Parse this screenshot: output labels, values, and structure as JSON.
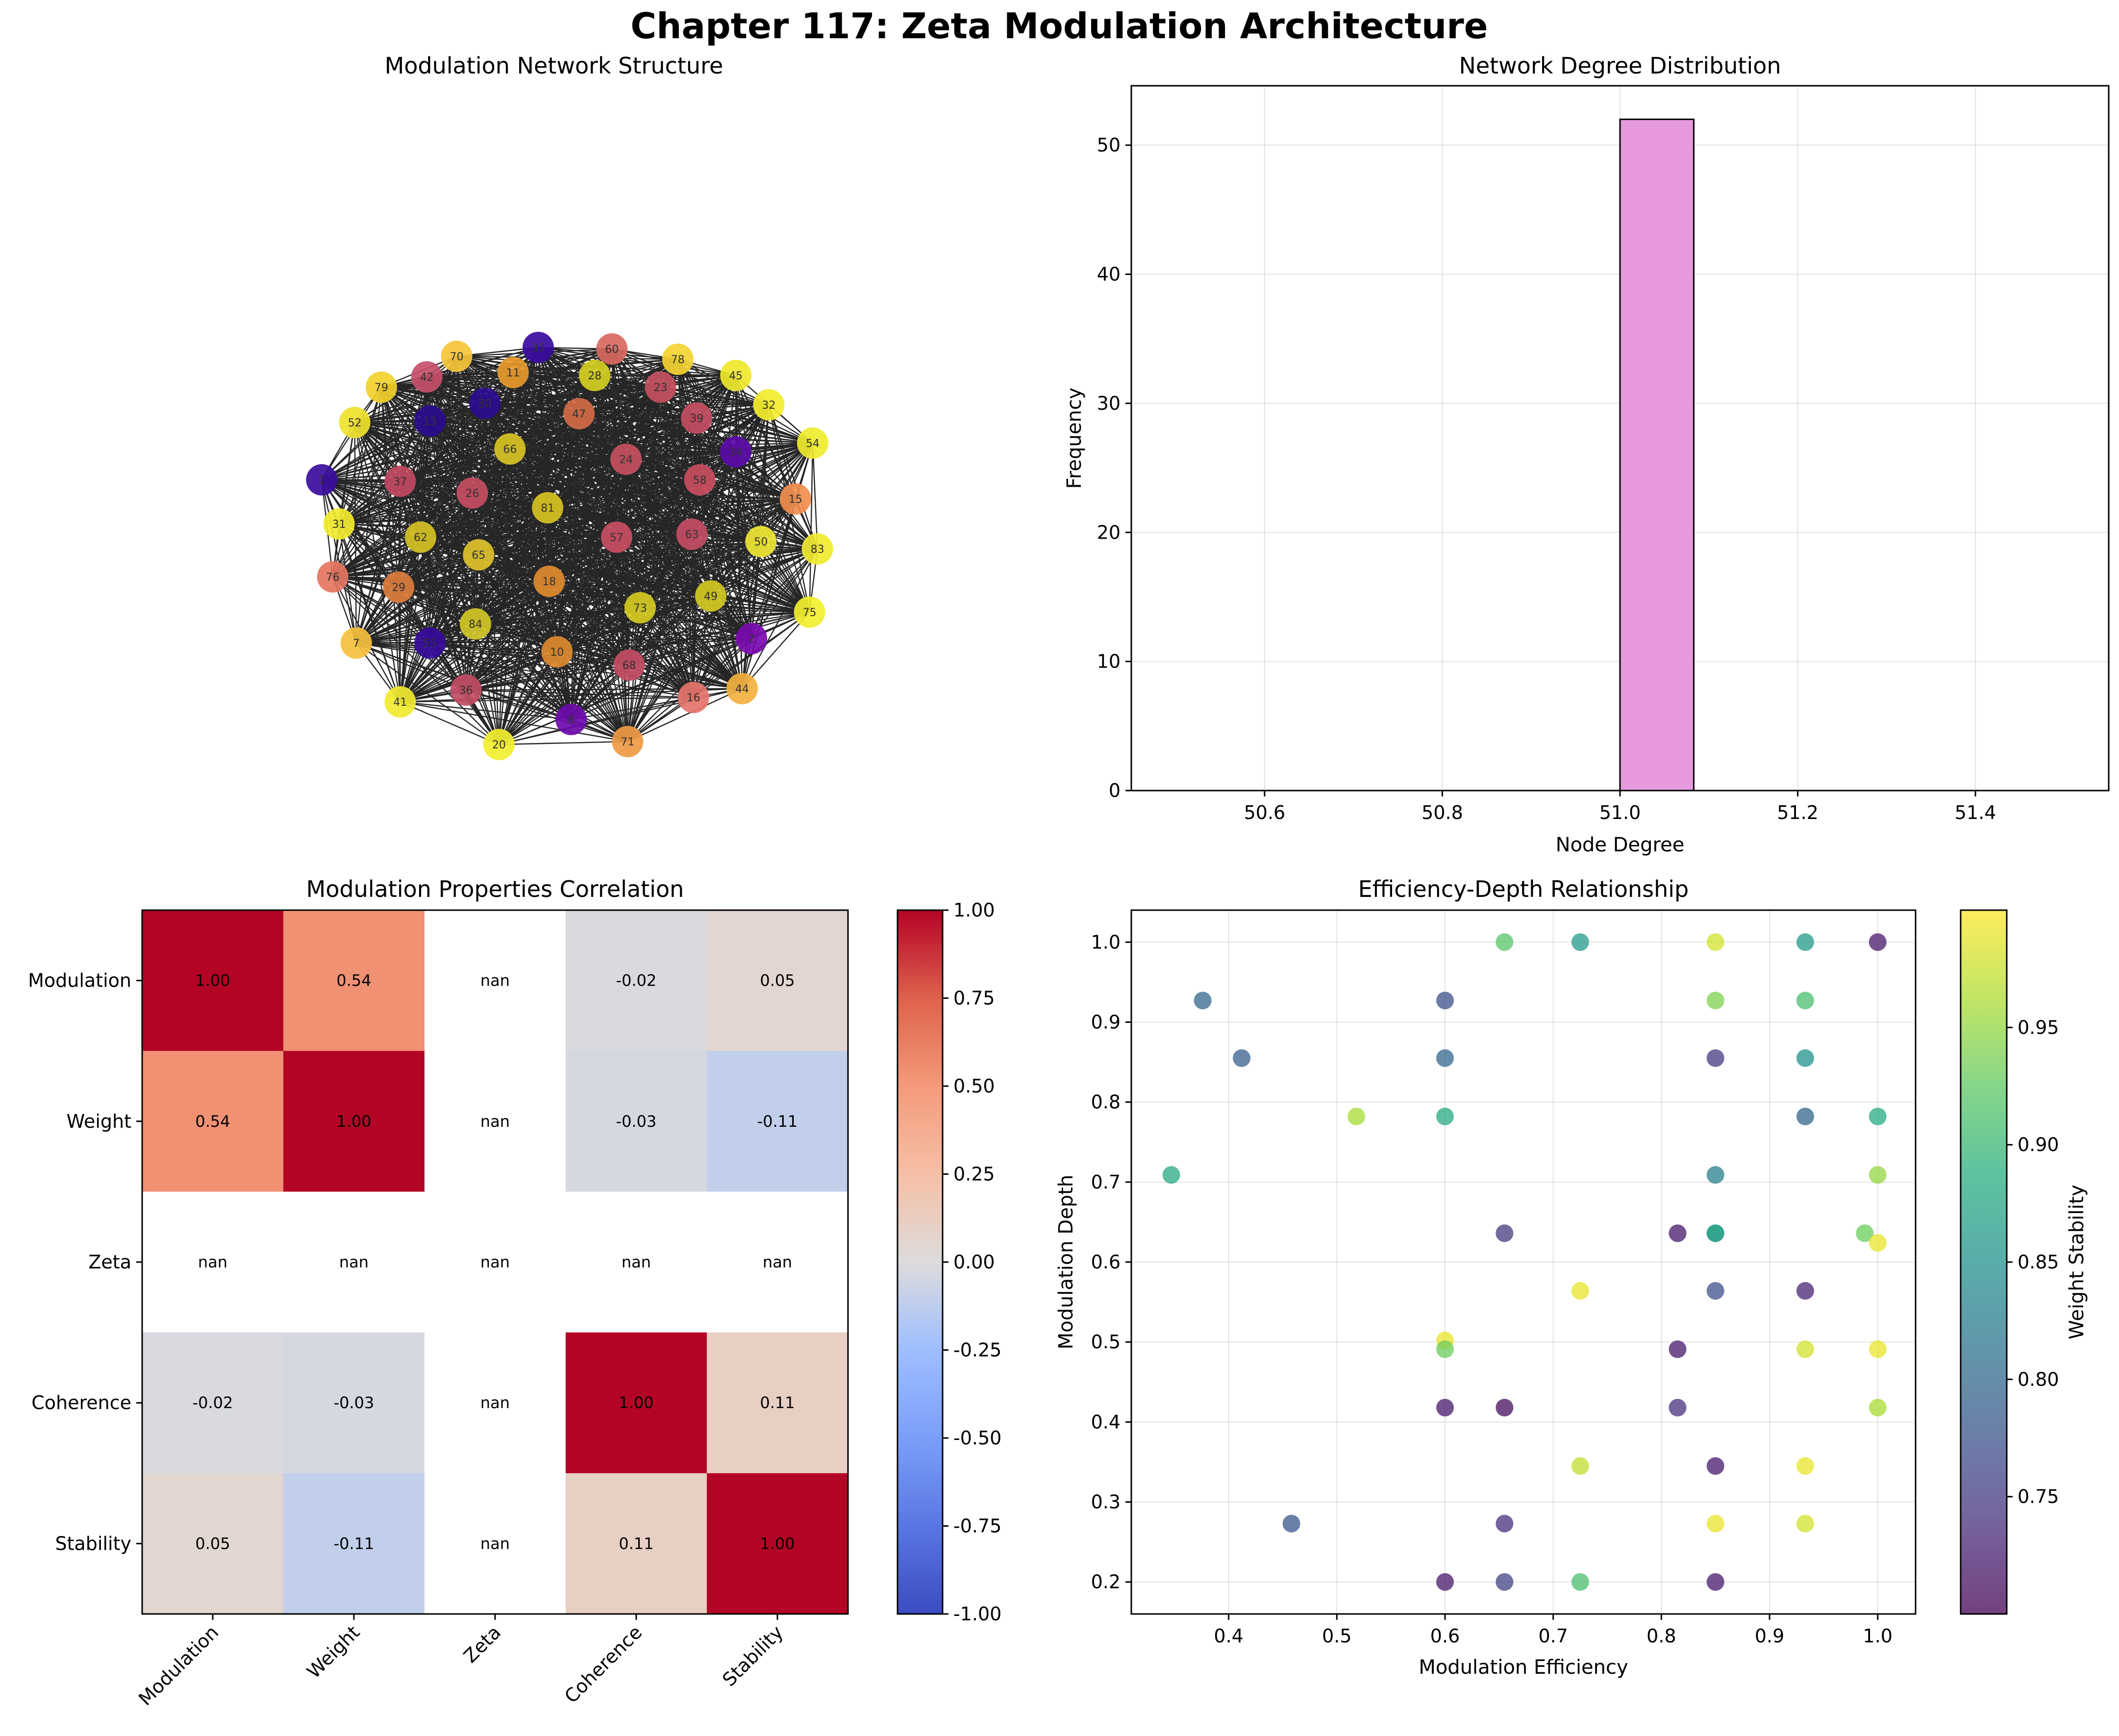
{
  "suptitle": "Chapter 117: Zeta Modulation Architecture",
  "chart_data": [
    {
      "type": "network",
      "title": "Modulation Network Structure",
      "nodes": [
        {
          "id": 70,
          "x": -0.62,
          "y": 0.86,
          "c": "#f7c63a"
        },
        {
          "id": 33,
          "x": -0.1,
          "y": 0.92,
          "c": "#3a0b9e"
        },
        {
          "id": 60,
          "x": 0.37,
          "y": 0.91,
          "c": "#d8685e"
        },
        {
          "id": 78,
          "x": 0.79,
          "y": 0.84,
          "c": "#f3d431"
        },
        {
          "id": 42,
          "x": -0.81,
          "y": 0.72,
          "c": "#c64f69"
        },
        {
          "id": 11,
          "x": -0.26,
          "y": 0.75,
          "c": "#e79a2a"
        },
        {
          "id": 28,
          "x": 0.26,
          "y": 0.73,
          "c": "#d5cf21"
        },
        {
          "id": 45,
          "x": 1.16,
          "y": 0.73,
          "c": "#efe82d"
        },
        {
          "id": 79,
          "x": -1.1,
          "y": 0.65,
          "c": "#f2d12c"
        },
        {
          "id": 23,
          "x": 0.68,
          "y": 0.65,
          "c": "#c5505f"
        },
        {
          "id": 30,
          "x": -0.44,
          "y": 0.54,
          "c": "#2b0b8f"
        },
        {
          "id": 47,
          "x": 0.16,
          "y": 0.47,
          "c": "#d36a45"
        },
        {
          "id": 32,
          "x": 1.37,
          "y": 0.53,
          "c": "#f3ed2f"
        },
        {
          "id": 39,
          "x": 0.91,
          "y": 0.44,
          "c": "#c44d62"
        },
        {
          "id": 52,
          "x": -1.27,
          "y": 0.41,
          "c": "#f0e22d"
        },
        {
          "id": 13,
          "x": -0.79,
          "y": 0.42,
          "c": "#2a0a8c"
        },
        {
          "id": 66,
          "x": -0.28,
          "y": 0.23,
          "c": "#d9c323"
        },
        {
          "id": 24,
          "x": 0.46,
          "y": 0.16,
          "c": "#c64f60"
        },
        {
          "id": 34,
          "x": 1.16,
          "y": 0.21,
          "c": "#5a0aa6"
        },
        {
          "id": 54,
          "x": 1.65,
          "y": 0.27,
          "c": "#f0ec2e"
        },
        {
          "id": 1,
          "x": -1.48,
          "y": 0.02,
          "c": "#3a0d9c"
        },
        {
          "id": 37,
          "x": -0.98,
          "y": 0.01,
          "c": "#c0485f"
        },
        {
          "id": 26,
          "x": -0.52,
          "y": -0.07,
          "c": "#c64d61"
        },
        {
          "id": 58,
          "x": 0.93,
          "y": 0.02,
          "c": "#c94d60"
        },
        {
          "id": 81,
          "x": -0.04,
          "y": -0.17,
          "c": "#d8c221"
        },
        {
          "id": 15,
          "x": 1.54,
          "y": -0.11,
          "c": "#f28e4e"
        },
        {
          "id": 31,
          "x": -1.37,
          "y": -0.28,
          "c": "#f3ec2f"
        },
        {
          "id": 62,
          "x": -0.85,
          "y": -0.37,
          "c": "#d6c123"
        },
        {
          "id": 57,
          "x": 0.4,
          "y": -0.37,
          "c": "#c94e63"
        },
        {
          "id": 63,
          "x": 0.88,
          "y": -0.35,
          "c": "#c44c63"
        },
        {
          "id": 50,
          "x": 1.32,
          "y": -0.4,
          "c": "#f0e733"
        },
        {
          "id": 83,
          "x": 1.68,
          "y": -0.45,
          "c": "#f2ea30"
        },
        {
          "id": 65,
          "x": -0.48,
          "y": -0.49,
          "c": "#e0c22b"
        },
        {
          "id": 76,
          "x": -1.41,
          "y": -0.64,
          "c": "#e57560"
        },
        {
          "id": 29,
          "x": -0.99,
          "y": -0.71,
          "c": "#dc7c3c"
        },
        {
          "id": 18,
          "x": -0.03,
          "y": -0.67,
          "c": "#e08a2c"
        },
        {
          "id": 73,
          "x": 0.55,
          "y": -0.85,
          "c": "#d6cb21"
        },
        {
          "id": 49,
          "x": 1.0,
          "y": -0.77,
          "c": "#d2c823"
        },
        {
          "id": 75,
          "x": 1.63,
          "y": -0.88,
          "c": "#f3ef30"
        },
        {
          "id": 84,
          "x": -0.5,
          "y": -0.96,
          "c": "#d1c725"
        },
        {
          "id": 7,
          "x": -1.26,
          "y": -1.09,
          "c": "#f6c03c"
        },
        {
          "id": 55,
          "x": -0.79,
          "y": -1.09,
          "c": "#340a99"
        },
        {
          "id": 2,
          "x": 1.26,
          "y": -1.06,
          "c": "#7a0aaf"
        },
        {
          "id": 10,
          "x": 0.02,
          "y": -1.15,
          "c": "#dd8a2e"
        },
        {
          "id": 68,
          "x": 0.48,
          "y": -1.24,
          "c": "#c54c64"
        },
        {
          "id": 36,
          "x": -0.56,
          "y": -1.41,
          "c": "#c14c63"
        },
        {
          "id": 16,
          "x": 0.89,
          "y": -1.46,
          "c": "#e6746a"
        },
        {
          "id": 44,
          "x": 1.2,
          "y": -1.4,
          "c": "#f3b03f"
        },
        {
          "id": 41,
          "x": -0.98,
          "y": -1.49,
          "c": "#f2ea30"
        },
        {
          "id": 8,
          "x": 0.11,
          "y": -1.61,
          "c": "#6b0aaa"
        },
        {
          "id": 20,
          "x": -0.35,
          "y": -1.78,
          "c": "#f3ef2f"
        },
        {
          "id": 71,
          "x": 0.47,
          "y": -1.76,
          "c": "#ef9a44"
        }
      ]
    },
    {
      "type": "bar",
      "title": "Network Degree Distribution",
      "xlabel": "Node Degree",
      "ylabel": "Frequency",
      "bins": [
        {
          "start": 51.0,
          "end": 51.083,
          "count": 52
        }
      ],
      "xlim": [
        50.45,
        51.55
      ],
      "ylim": [
        0,
        54.6
      ],
      "xticks": [
        "50.6",
        "50.8",
        "51.0",
        "51.2",
        "51.4"
      ],
      "xtick_values": [
        50.6,
        50.8,
        51.0,
        51.2,
        51.4
      ],
      "yticks": [
        "0",
        "10",
        "20",
        "30",
        "40",
        "50"
      ],
      "ytick_values": [
        0,
        10,
        20,
        30,
        40,
        50
      ],
      "bar_color": "#e699de"
    },
    {
      "type": "heatmap",
      "title": "Modulation Properties Correlation",
      "labels": [
        "Modulation",
        "Weight",
        "Zeta",
        "Coherence",
        "Stability"
      ],
      "values": [
        [
          1.0,
          0.54,
          null,
          -0.02,
          0.05
        ],
        [
          0.54,
          1.0,
          null,
          -0.03,
          -0.11
        ],
        [
          null,
          null,
          null,
          null,
          null
        ],
        [
          -0.02,
          -0.03,
          null,
          1.0,
          0.11
        ],
        [
          0.05,
          -0.11,
          null,
          0.11,
          1.0
        ]
      ],
      "cell_text": [
        [
          "1.00",
          "0.54",
          "nan",
          "-0.02",
          "0.05"
        ],
        [
          "0.54",
          "1.00",
          "nan",
          "-0.03",
          "-0.11"
        ],
        [
          "nan",
          "nan",
          "nan",
          "nan",
          "nan"
        ],
        [
          "-0.02",
          "-0.03",
          "nan",
          "1.00",
          "0.11"
        ],
        [
          "0.05",
          "-0.11",
          "nan",
          "0.11",
          "1.00"
        ]
      ],
      "colorbar": {
        "min": -1.0,
        "max": 1.0,
        "ticks": [
          "-1.00",
          "-0.75",
          "-0.50",
          "-0.25",
          "0.00",
          "0.25",
          "0.50",
          "0.75",
          "1.00"
        ],
        "tick_values": [
          -1,
          -0.75,
          -0.5,
          -0.25,
          0,
          0.25,
          0.5,
          0.75,
          1
        ]
      }
    },
    {
      "type": "scatter",
      "title": "Efficiency-Depth Relationship",
      "xlabel": "Modulation Efficiency",
      "ylabel": "Modulation Depth",
      "xlim": [
        0.31,
        1.035
      ],
      "ylim": [
        0.16,
        1.04
      ],
      "xticks": [
        "0.4",
        "0.5",
        "0.6",
        "0.7",
        "0.8",
        "0.9",
        "1.0"
      ],
      "xtick_values": [
        0.4,
        0.5,
        0.6,
        0.7,
        0.8,
        0.9,
        1.0
      ],
      "yticks": [
        "0.2",
        "0.3",
        "0.4",
        "0.5",
        "0.6",
        "0.7",
        "0.8",
        "0.9",
        "1.0"
      ],
      "ytick_values": [
        0.2,
        0.3,
        0.4,
        0.5,
        0.6,
        0.7,
        0.8,
        0.9,
        1.0
      ],
      "colorbar": {
        "label": "Weight Stability",
        "min": 0.7,
        "max": 1.0,
        "ticks": [
          "0.75",
          "0.80",
          "0.85",
          "0.90",
          "0.95"
        ],
        "tick_values": [
          0.75,
          0.8,
          0.85,
          0.9,
          0.95
        ]
      },
      "points": [
        {
          "x": 0.655,
          "y": 1.0,
          "c": 0.92
        },
        {
          "x": 0.725,
          "y": 1.0,
          "c": 0.86
        },
        {
          "x": 0.85,
          "y": 1.0,
          "c": 0.98
        },
        {
          "x": 0.933,
          "y": 1.0,
          "c": 0.86
        },
        {
          "x": 1.0,
          "y": 1.0,
          "c": 0.72
        },
        {
          "x": 0.376,
          "y": 0.927,
          "c": 0.8
        },
        {
          "x": 0.6,
          "y": 0.927,
          "c": 0.77
        },
        {
          "x": 0.85,
          "y": 0.927,
          "c": 0.94
        },
        {
          "x": 0.933,
          "y": 0.927,
          "c": 0.91
        },
        {
          "x": 0.412,
          "y": 0.855,
          "c": 0.79
        },
        {
          "x": 0.6,
          "y": 0.855,
          "c": 0.8
        },
        {
          "x": 0.85,
          "y": 0.855,
          "c": 0.75
        },
        {
          "x": 0.933,
          "y": 0.855,
          "c": 0.85
        },
        {
          "x": 0.518,
          "y": 0.782,
          "c": 0.96
        },
        {
          "x": 0.6,
          "y": 0.782,
          "c": 0.88
        },
        {
          "x": 0.933,
          "y": 0.782,
          "c": 0.8
        },
        {
          "x": 1.0,
          "y": 0.782,
          "c": 0.88
        },
        {
          "x": 0.347,
          "y": 0.709,
          "c": 0.88
        },
        {
          "x": 0.85,
          "y": 0.709,
          "c": 0.83
        },
        {
          "x": 1.0,
          "y": 0.709,
          "c": 0.95
        },
        {
          "x": 0.655,
          "y": 0.636,
          "c": 0.75
        },
        {
          "x": 0.815,
          "y": 0.636,
          "c": 0.72
        },
        {
          "x": 0.85,
          "y": 0.636,
          "c": 0.86
        },
        {
          "x": 0.85,
          "y": 0.636,
          "c": 0.87
        },
        {
          "x": 0.988,
          "y": 0.636,
          "c": 0.93
        },
        {
          "x": 1.0,
          "y": 0.624,
          "c": 0.99
        },
        {
          "x": 0.725,
          "y": 0.564,
          "c": 0.99
        },
        {
          "x": 0.85,
          "y": 0.564,
          "c": 0.77
        },
        {
          "x": 0.933,
          "y": 0.564,
          "c": 0.73
        },
        {
          "x": 0.6,
          "y": 0.502,
          "c": 0.99
        },
        {
          "x": 0.6,
          "y": 0.491,
          "c": 0.93
        },
        {
          "x": 0.815,
          "y": 0.491,
          "c": 0.72
        },
        {
          "x": 0.933,
          "y": 0.491,
          "c": 0.98
        },
        {
          "x": 1.0,
          "y": 0.491,
          "c": 0.99
        },
        {
          "x": 0.6,
          "y": 0.418,
          "c": 0.72
        },
        {
          "x": 0.655,
          "y": 0.418,
          "c": 0.71
        },
        {
          "x": 0.815,
          "y": 0.418,
          "c": 0.74
        },
        {
          "x": 1.0,
          "y": 0.418,
          "c": 0.96
        },
        {
          "x": 0.725,
          "y": 0.345,
          "c": 0.97
        },
        {
          "x": 0.85,
          "y": 0.345,
          "c": 0.72
        },
        {
          "x": 0.933,
          "y": 0.345,
          "c": 0.99
        },
        {
          "x": 0.458,
          "y": 0.273,
          "c": 0.78
        },
        {
          "x": 0.655,
          "y": 0.273,
          "c": 0.74
        },
        {
          "x": 0.85,
          "y": 0.273,
          "c": 0.99
        },
        {
          "x": 0.933,
          "y": 0.273,
          "c": 0.98
        },
        {
          "x": 0.6,
          "y": 0.2,
          "c": 0.72
        },
        {
          "x": 0.655,
          "y": 0.2,
          "c": 0.76
        },
        {
          "x": 0.725,
          "y": 0.2,
          "c": 0.91
        },
        {
          "x": 0.85,
          "y": 0.2,
          "c": 0.72
        }
      ]
    }
  ]
}
